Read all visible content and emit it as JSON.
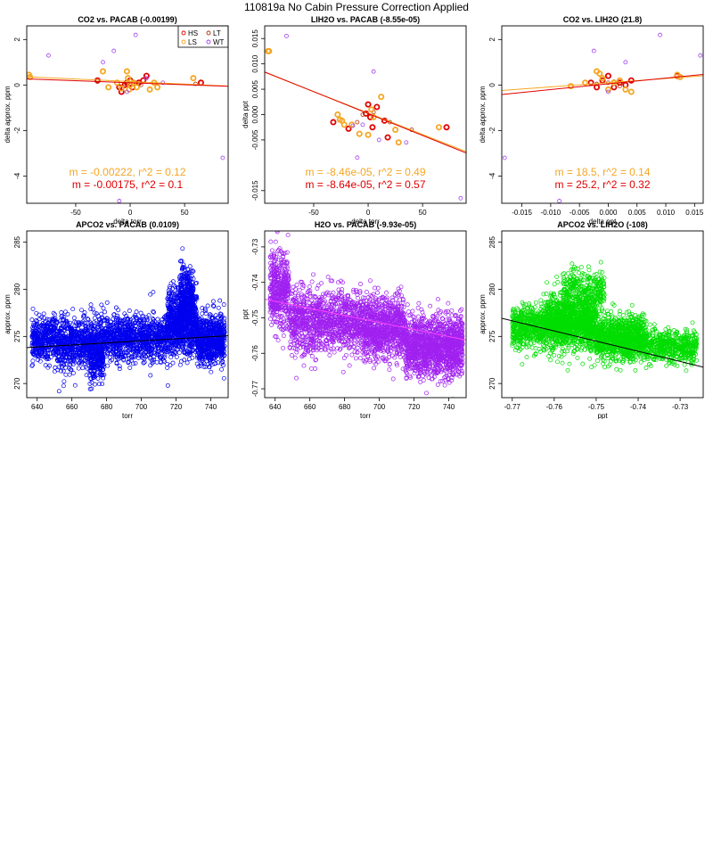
{
  "page": {
    "title": "110819a   No Cabin Pressure Correction Applied"
  },
  "chart_data": [
    {
      "type": "scatter",
      "title": "CO2 vs. PACAB (-0.00199)",
      "xlabel": "delta torr",
      "ylabel": "delta approx. ppm",
      "xlim": [
        -95,
        90
      ],
      "ylim": [
        -5.2,
        2.6
      ],
      "xticks": [
        -50,
        0,
        50
      ],
      "yticks": [
        -4,
        -2,
        0,
        2
      ],
      "legend": {
        "placement": "top-right",
        "entries": [
          {
            "label": "HS",
            "color": "#e00000"
          },
          {
            "label": "LT",
            "color": "#b03000"
          },
          {
            "label": "LS",
            "color": "#f5a623"
          },
          {
            "label": "WT",
            "color": "#a040f0"
          }
        ]
      },
      "fits": [
        {
          "color": "#f5a623",
          "slope": -0.00222,
          "intercept": 0.15
        },
        {
          "color": "#e00000",
          "slope": -0.00175,
          "intercept": 0.1
        }
      ],
      "stats": [
        {
          "text": "m = -0.00222, r^2 = 0.12",
          "color": "#f5a623"
        },
        {
          "text": "m = -0.00175, r^2 = 0.1",
          "color": "#e00000"
        }
      ],
      "series": [
        {
          "name": "HS",
          "color": "#e00000",
          "thick": true,
          "points": [
            [
              -30,
              0.2
            ],
            [
              -10,
              -0.1
            ],
            [
              -8,
              -0.3
            ],
            [
              -3,
              0.1
            ],
            [
              0,
              0.2
            ],
            [
              2,
              -0.1
            ],
            [
              8,
              0.1
            ],
            [
              12,
              0.2
            ],
            [
              15,
              0.4
            ],
            [
              65,
              0.1
            ],
            [
              -5,
              0
            ]
          ]
        },
        {
          "name": "LT",
          "color": "#b03000",
          "thick": false,
          "points": [
            [
              -30,
              0.15
            ],
            [
              -5,
              0.05
            ],
            [
              0,
              0.05
            ],
            [
              5,
              0.1
            ],
            [
              10,
              0
            ],
            [
              60,
              0.05
            ]
          ]
        },
        {
          "name": "LS",
          "color": "#f5a623",
          "thick": true,
          "points": [
            [
              -93,
              0.45
            ],
            [
              -92,
              0.35
            ],
            [
              -25,
              0.6
            ],
            [
              -20,
              -0.1
            ],
            [
              -12,
              0.1
            ],
            [
              -8,
              -0.15
            ],
            [
              -2,
              0.3
            ],
            [
              0,
              0
            ],
            [
              3,
              0.1
            ],
            [
              6,
              -0.1
            ],
            [
              18,
              -0.2
            ],
            [
              22,
              0.1
            ],
            [
              25,
              -0.1
            ],
            [
              58,
              0.3
            ],
            [
              -3,
              0.6
            ],
            [
              -1,
              -0.2
            ]
          ]
        },
        {
          "name": "WT",
          "color": "#a040f0",
          "thick": false,
          "points": [
            [
              -75,
              1.3
            ],
            [
              -25,
              1
            ],
            [
              -15,
              1.5
            ],
            [
              5,
              2.2
            ],
            [
              -3,
              -0.3
            ],
            [
              15,
              0.3
            ],
            [
              30,
              0.1
            ],
            [
              85,
              -3.2
            ],
            [
              -10,
              -5.1
            ]
          ]
        }
      ]
    },
    {
      "type": "scatter",
      "title": "LIH2O vs. PACAB (-8.55e-05)",
      "xlabel": "delta torr",
      "ylabel": "delta ppt",
      "xlim": [
        -95,
        90
      ],
      "ylim": [
        -0.0175,
        0.0175
      ],
      "xticks": [
        -50,
        0,
        50
      ],
      "yticks": [
        -0.015,
        -0.005,
        0,
        0.005,
        0.01,
        0.015
      ],
      "yticklabels": [
        "-0.015",
        "-0.005",
        "0.000",
        "0.005",
        "0.010",
        "0.015"
      ],
      "fits": [
        {
          "color": "#f5a623",
          "slope": -8.46e-05,
          "intercept": 0.0003
        },
        {
          "color": "#e00000",
          "slope": -8.64e-05,
          "intercept": 0.0002
        }
      ],
      "stats": [
        {
          "text": "m = -8.46e-05, r^2 = 0.49",
          "color": "#f5a623"
        },
        {
          "text": "m = -8.64e-05, r^2 = 0.57",
          "color": "#e00000"
        }
      ],
      "series": [
        {
          "name": "HS",
          "color": "#e00000",
          "thick": true,
          "points": [
            [
              -32,
              -0.0015
            ],
            [
              -18,
              -0.0028
            ],
            [
              -2,
              0.0002
            ],
            [
              0,
              0.002
            ],
            [
              2,
              -0.0005
            ],
            [
              4,
              -0.0025
            ],
            [
              8,
              0.0015
            ],
            [
              15,
              -0.0012
            ],
            [
              18,
              -0.0045
            ],
            [
              72,
              -0.0025
            ]
          ]
        },
        {
          "name": "LT",
          "color": "#b03000",
          "thick": false,
          "points": [
            [
              -10,
              -0.0015
            ],
            [
              -5,
              0
            ],
            [
              5,
              0.0005
            ],
            [
              20,
              -0.0015
            ],
            [
              40,
              -0.003
            ]
          ]
        },
        {
          "name": "LS",
          "color": "#f5a623",
          "thick": true,
          "points": [
            [
              -92,
              0.0125
            ],
            [
              -91,
              0.0125
            ],
            [
              -28,
              0
            ],
            [
              -26,
              -0.001
            ],
            [
              -24,
              -0.0012
            ],
            [
              -22,
              -0.002
            ],
            [
              -15,
              -0.002
            ],
            [
              0,
              -0.004
            ],
            [
              3,
              0.001
            ],
            [
              5,
              -0.0005
            ],
            [
              12,
              0.0035
            ],
            [
              25,
              -0.003
            ],
            [
              28,
              -0.0055
            ],
            [
              65,
              -0.0025
            ],
            [
              -8,
              -0.0038
            ]
          ]
        },
        {
          "name": "WT",
          "color": "#a040f0",
          "thick": false,
          "points": [
            [
              -75,
              0.0155
            ],
            [
              -10,
              -0.0085
            ],
            [
              -5,
              -0.002
            ],
            [
              5,
              0.0085
            ],
            [
              10,
              -0.005
            ],
            [
              35,
              -0.0055
            ],
            [
              85,
              -0.0165
            ],
            [
              -14,
              -0.0022
            ]
          ]
        }
      ]
    },
    {
      "type": "scatter",
      "title": "CO2 vs. LIH2O (21.8)",
      "xlabel": "delta ppt",
      "ylabel": "delta approx. ppm",
      "xlim": [
        -0.0185,
        0.0165
      ],
      "ylim": [
        -5.2,
        2.6
      ],
      "xticks": [
        -0.015,
        -0.01,
        -0.005,
        0,
        0.005,
        0.01,
        0.015
      ],
      "xticklabels": [
        "-0.015",
        "-0.010",
        "-0.005",
        "0.000",
        "0.005",
        "0.010",
        "0.015"
      ],
      "yticks": [
        -4,
        -2,
        0,
        2
      ],
      "fits": [
        {
          "color": "#f5a623",
          "slope": 18.5,
          "intercept": 0.1
        },
        {
          "color": "#e00000",
          "slope": 25.2,
          "intercept": 0.05
        }
      ],
      "stats": [
        {
          "text": "m = 18.5, r^2 = 0.14",
          "color": "#f5a623"
        },
        {
          "text": "m = 25.2, r^2 = 0.32",
          "color": "#e00000"
        }
      ],
      "series": [
        {
          "name": "HS",
          "color": "#e00000",
          "thick": true,
          "points": [
            [
              -0.003,
              0.1
            ],
            [
              -0.002,
              -0.1
            ],
            [
              -0.001,
              0.2
            ],
            [
              0,
              0.4
            ],
            [
              0.001,
              -0.1
            ],
            [
              0.002,
              0.1
            ],
            [
              0.003,
              0
            ],
            [
              0.004,
              0.2
            ],
            [
              0.012,
              0.4
            ]
          ]
        },
        {
          "name": "LT",
          "color": "#b03000",
          "thick": false,
          "points": [
            [
              -0.002,
              0.05
            ],
            [
              0,
              0.1
            ],
            [
              0.002,
              -0.05
            ],
            [
              0.001,
              0.15
            ]
          ]
        },
        {
          "name": "LS",
          "color": "#f5a623",
          "thick": true,
          "points": [
            [
              -0.0065,
              -0.05
            ],
            [
              -0.004,
              0.1
            ],
            [
              -0.002,
              0.6
            ],
            [
              -0.001,
              0.3
            ],
            [
              0,
              -0.2
            ],
            [
              0.001,
              0.1
            ],
            [
              0.002,
              0.2
            ],
            [
              0.003,
              -0.2
            ],
            [
              0.004,
              -0.3
            ],
            [
              0.012,
              0.45
            ],
            [
              0.0125,
              0.35
            ],
            [
              -0.0015,
              0.5
            ]
          ]
        },
        {
          "name": "WT",
          "color": "#a040f0",
          "thick": false,
          "points": [
            [
              -0.018,
              -3.2
            ],
            [
              -0.0085,
              -5.1
            ],
            [
              -0.0025,
              1.5
            ],
            [
              0.003,
              1
            ],
            [
              0.009,
              2.2
            ],
            [
              0.016,
              1.3
            ],
            [
              0,
              -0.3
            ]
          ]
        }
      ]
    },
    {
      "type": "scatter",
      "title": "APCO2 vs. PACAB (0.0109)",
      "xlabel": "torr",
      "ylabel": "approx. ppm",
      "color": "#0000ee",
      "xlim": [
        634,
        750
      ],
      "ylim": [
        268.5,
        286.2
      ],
      "xticks": [
        640,
        660,
        680,
        700,
        720,
        740
      ],
      "yticks": [
        270,
        275,
        280,
        285
      ],
      "fit": {
        "slope": 0.0109,
        "intercept": 266.9,
        "color": "#000000"
      },
      "density_clusters": [
        {
          "x": [
            637,
            650
          ],
          "y_center": 274.8,
          "y_spread": 2.2,
          "n": 350
        },
        {
          "x": [
            650,
            680
          ],
          "y_center": 274.3,
          "y_spread": 2.6,
          "n": 850
        },
        {
          "x": [
            670,
            678
          ],
          "y_center": 272.5,
          "y_spread": 2.0,
          "n": 200
        },
        {
          "x": [
            680,
            715
          ],
          "y_center": 274.8,
          "y_spread": 2.3,
          "n": 900
        },
        {
          "x": [
            715,
            732
          ],
          "y_center": 276.5,
          "y_spread": 3.2,
          "n": 900
        },
        {
          "x": [
            722,
            730
          ],
          "y_center": 279.5,
          "y_spread": 2.8,
          "n": 260
        },
        {
          "x": [
            732,
            748
          ],
          "y_center": 274.6,
          "y_spread": 2.4,
          "n": 700
        }
      ]
    },
    {
      "type": "scatter",
      "title": "H2O vs. PACAB (-9.93e-05)",
      "xlabel": "torr",
      "ylabel": "ppt",
      "color": "#a020f0",
      "fit_color": "#ff44ff",
      "xlim": [
        634,
        750
      ],
      "ylim": [
        -0.7725,
        -0.7255
      ],
      "xticks": [
        640,
        660,
        680,
        700,
        720,
        740
      ],
      "yticks": [
        -0.77,
        -0.76,
        -0.75,
        -0.74,
        -0.73
      ],
      "fit": {
        "slope": -9.93e-05,
        "intercept": -0.6818,
        "color": "#ff44ff"
      },
      "density_clusters": [
        {
          "x": [
            637,
            648
          ],
          "y_center": -0.742,
          "y_spread": 0.009,
          "n": 450
        },
        {
          "x": [
            648,
            690
          ],
          "y_center": -0.751,
          "y_spread": 0.008,
          "n": 1100
        },
        {
          "x": [
            690,
            715
          ],
          "y_center": -0.753,
          "y_spread": 0.008,
          "n": 900
        },
        {
          "x": [
            715,
            748
          ],
          "y_center": -0.758,
          "y_spread": 0.0075,
          "n": 1400
        }
      ]
    },
    {
      "type": "scatter",
      "title": "APCO2 vs. LIH2O (-108)",
      "xlabel": "ppt",
      "ylabel": "approx. ppm",
      "color": "#00dd00",
      "xlim": [
        -0.7725,
        -0.7245
      ],
      "ylim": [
        268.5,
        286.2
      ],
      "xticks": [
        -0.77,
        -0.76,
        -0.75,
        -0.74,
        -0.73
      ],
      "yticks": [
        270,
        275,
        280,
        285
      ],
      "fit": {
        "slope": -108,
        "intercept": 193.5,
        "color": "#000000"
      },
      "density_clusters": [
        {
          "x": [
            -0.77,
            -0.762
          ],
          "y_center": 276,
          "y_spread": 2.0,
          "n": 500
        },
        {
          "x": [
            -0.762,
            -0.75
          ],
          "y_center": 276.5,
          "y_spread": 2.6,
          "n": 1400
        },
        {
          "x": [
            -0.758,
            -0.748
          ],
          "y_center": 280,
          "y_spread": 2.0,
          "n": 300
        },
        {
          "x": [
            -0.75,
            -0.738
          ],
          "y_center": 274.8,
          "y_spread": 2.0,
          "n": 1100
        },
        {
          "x": [
            -0.738,
            -0.726
          ],
          "y_center": 274,
          "y_spread": 1.5,
          "n": 500
        }
      ]
    }
  ]
}
